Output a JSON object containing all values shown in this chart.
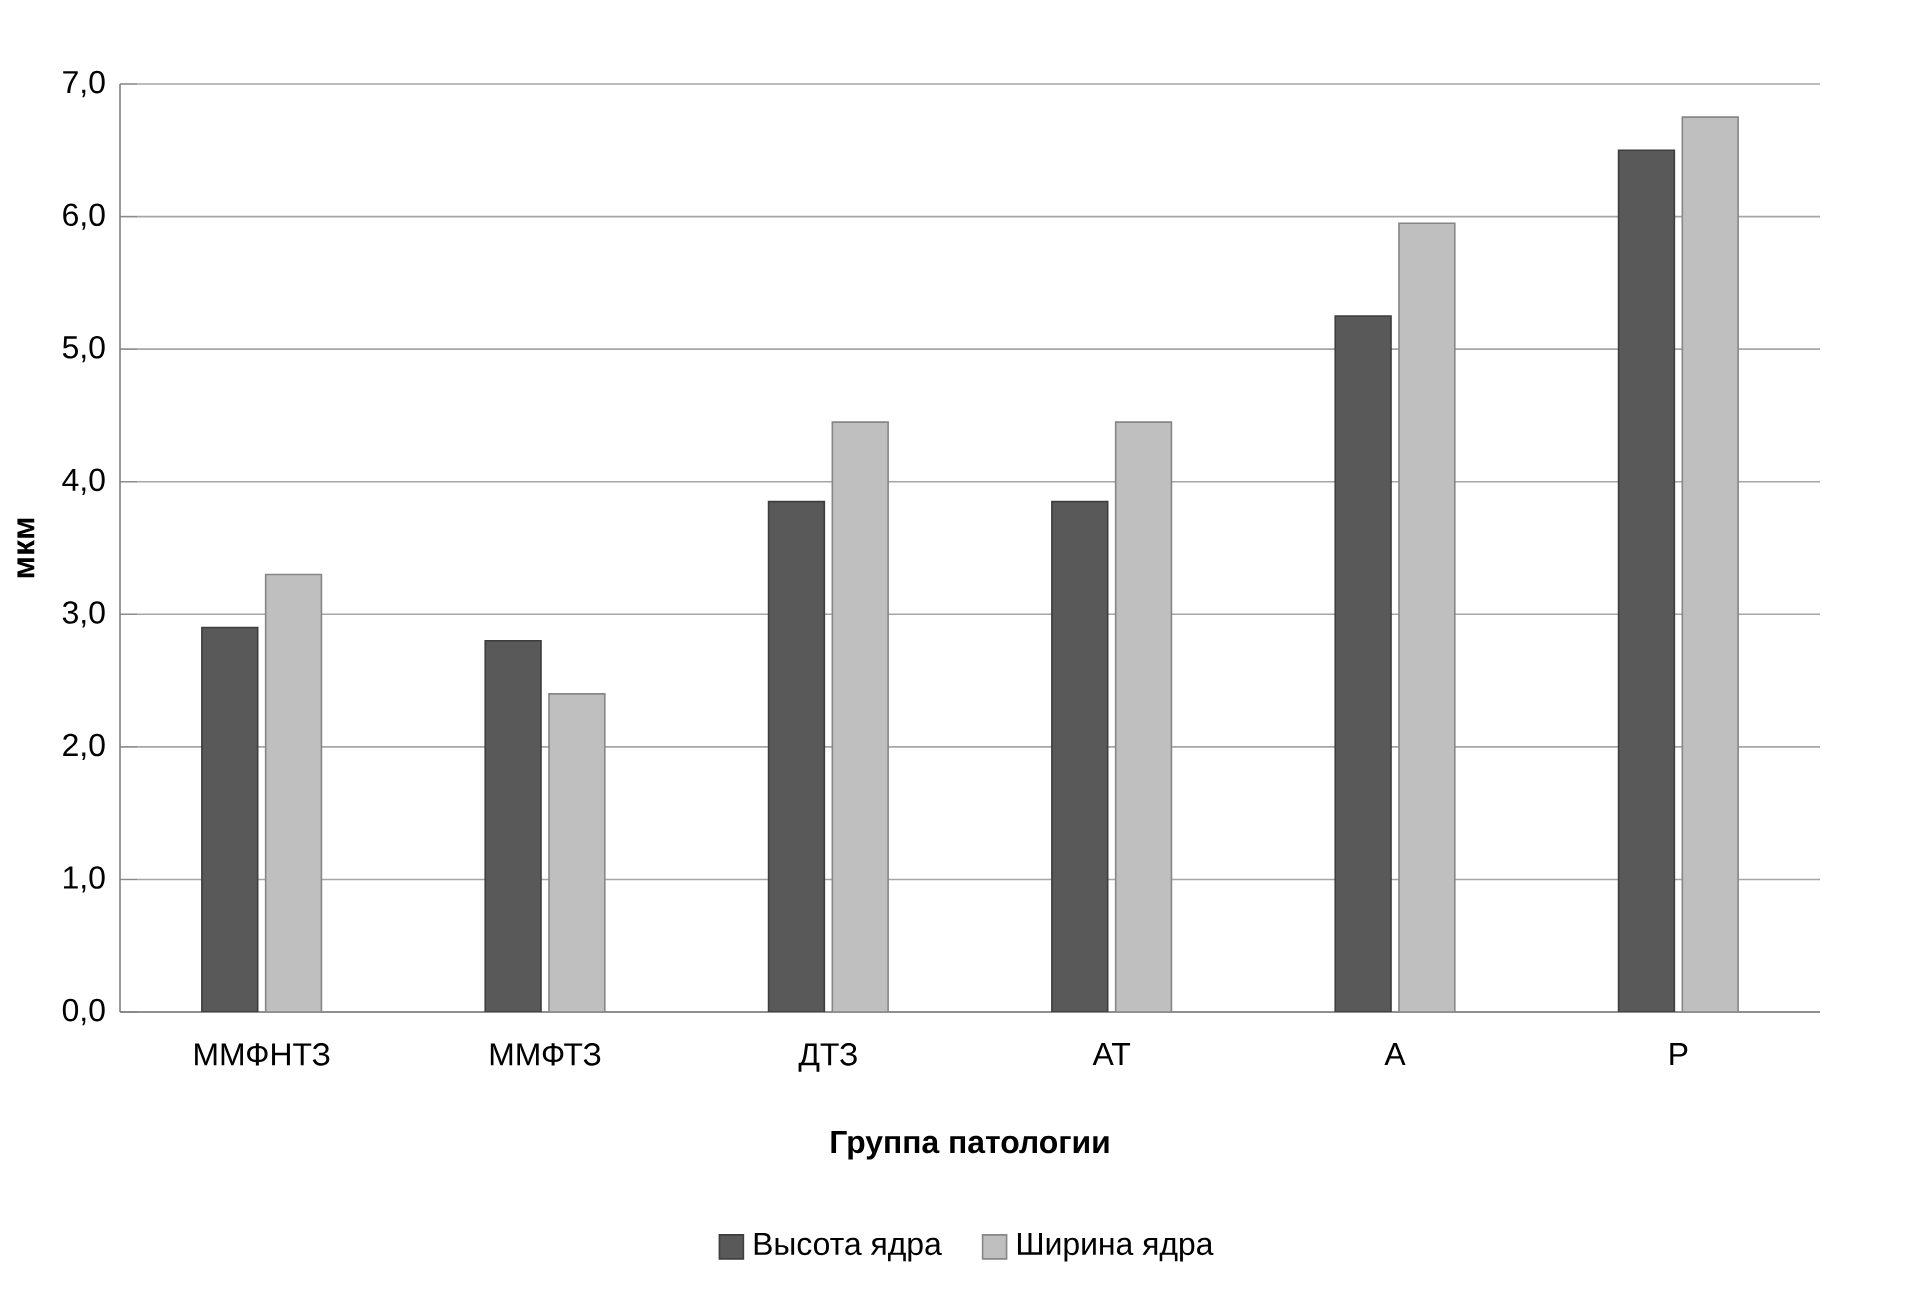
{
  "chart_data": {
    "type": "bar",
    "xlabel": "Группа патологии",
    "ylabel": "мкм",
    "categories": [
      "ММФНТЗ",
      "ММФТЗ",
      "ДТЗ",
      "АТ",
      "А",
      "Р"
    ],
    "series": [
      {
        "name": "Высота ядра",
        "color": "#595959",
        "values": [
          2.9,
          2.8,
          3.85,
          3.85,
          5.25,
          6.5
        ]
      },
      {
        "name": "Ширина ядра",
        "color": "#bfbfbf",
        "values": [
          3.3,
          2.4,
          4.45,
          4.45,
          5.95,
          6.75
        ]
      }
    ],
    "ylim": [
      0,
      7
    ],
    "yticks": [
      {
        "value": 0,
        "label": "0,0"
      },
      {
        "value": 1,
        "label": "1,0"
      },
      {
        "value": 2,
        "label": "2,0"
      },
      {
        "value": 3,
        "label": "3,0"
      },
      {
        "value": 4,
        "label": "4,0"
      },
      {
        "value": 5,
        "label": "5,0"
      },
      {
        "value": 6,
        "label": "6,0"
      },
      {
        "value": 7,
        "label": "7,0"
      }
    ],
    "grid": "y",
    "legend": "bottom"
  }
}
